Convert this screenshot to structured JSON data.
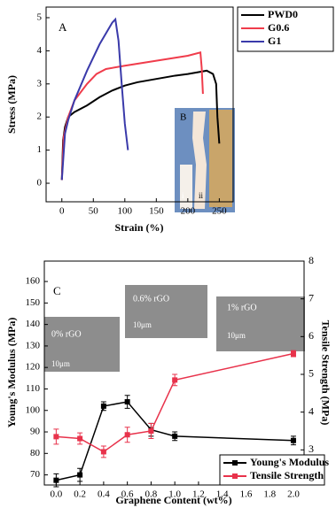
{
  "chart_data": [
    {
      "type": "line",
      "x_label": "Strain (%)",
      "y_label": "Stress (MPa)",
      "xlim": [
        -25,
        272
      ],
      "ylim": [
        -0.56,
        5.32
      ],
      "xticks": [
        0,
        50,
        100,
        150,
        200,
        250
      ],
      "yticks": [
        0,
        1,
        2,
        3,
        4,
        5
      ],
      "legend": "upper right",
      "annotations": [
        "A",
        "B",
        "i",
        "ii"
      ],
      "series": [
        {
          "name": "PWD0",
          "color": "#000000",
          "x": [
            0,
            2,
            5,
            10,
            20,
            40,
            60,
            80,
            100,
            120,
            150,
            180,
            200,
            215,
            230,
            240,
            245,
            247,
            250
          ],
          "values": [
            0.1,
            1.3,
            1.7,
            2.0,
            2.15,
            2.35,
            2.6,
            2.8,
            2.95,
            3.05,
            3.15,
            3.25,
            3.3,
            3.35,
            3.4,
            3.3,
            3.0,
            2.0,
            1.2
          ]
        },
        {
          "name": "G0.6",
          "color": "#f03c4b",
          "x": [
            0,
            3,
            10,
            20,
            40,
            55,
            70,
            100,
            150,
            200,
            220,
            222,
            224
          ],
          "values": [
            0.1,
            1.4,
            2.0,
            2.5,
            3.0,
            3.3,
            3.45,
            3.55,
            3.7,
            3.85,
            3.95,
            3.5,
            2.7
          ]
        },
        {
          "name": "G1",
          "color": "#3a3aaa",
          "x": [
            0,
            5,
            10,
            20,
            40,
            60,
            80,
            85,
            90,
            95,
            100,
            105
          ],
          "values": [
            0.1,
            1.5,
            1.9,
            2.5,
            3.4,
            4.2,
            4.85,
            4.95,
            4.3,
            3.0,
            1.8,
            1.0
          ]
        }
      ]
    },
    {
      "type": "line",
      "x_label": "Graphene Content (wt%)",
      "y_label": "Young's Modulus (MPa)",
      "y2_label": "Tensile Strength (MPa)",
      "xlim": [
        -0.1,
        2.09
      ],
      "ylim": [
        65.3,
        169.5
      ],
      "y2lim": [
        2.07,
        8.0
      ],
      "xticks": [
        {
          "value": 0,
          "label": "0.0"
        },
        {
          "value": 0.2,
          "label": "0.2"
        },
        {
          "value": 0.4,
          "label": "0.4"
        },
        {
          "value": 0.6,
          "label": "0.6"
        },
        {
          "value": 0.8,
          "label": "0.8"
        },
        {
          "value": 1,
          "label": "1.0"
        },
        {
          "value": 1.2,
          "label": "1.2"
        },
        {
          "value": 1.4,
          "label": "1.4"
        },
        {
          "value": 1.6,
          "label": "1.6"
        },
        {
          "value": 1.8,
          "label": "1.8"
        },
        {
          "value": 2,
          "label": "2.0"
        }
      ],
      "yticks": [
        70,
        80,
        90,
        100,
        110,
        120,
        130,
        140,
        150,
        160
      ],
      "y2ticks": [
        3,
        4,
        5,
        6,
        7,
        8
      ],
      "legend": "lower right",
      "annotations": [
        "C",
        "0% rGO",
        "0.6% rGO",
        "1% rGO",
        "10μm",
        "10μm",
        "10μm"
      ],
      "x": [
        0,
        0.2,
        0.4,
        0.6,
        0.8,
        1.0,
        2.0
      ],
      "series": [
        {
          "name": "Young's Modulus",
          "color": "#000000",
          "values": [
            67.5,
            70,
            102,
            104,
            91,
            88,
            86
          ],
          "errors": [
            3,
            3,
            2,
            3,
            3,
            2,
            2
          ]
        },
        {
          "name": "Tensile Strength",
          "color": "#e8324b",
          "axis": "y2",
          "values": [
            3.35,
            3.3,
            2.95,
            3.4,
            3.5,
            4.85,
            5.55
          ],
          "errors": [
            0.2,
            0.15,
            0.15,
            0.2,
            0.2,
            0.15,
            0.08
          ]
        }
      ]
    }
  ]
}
